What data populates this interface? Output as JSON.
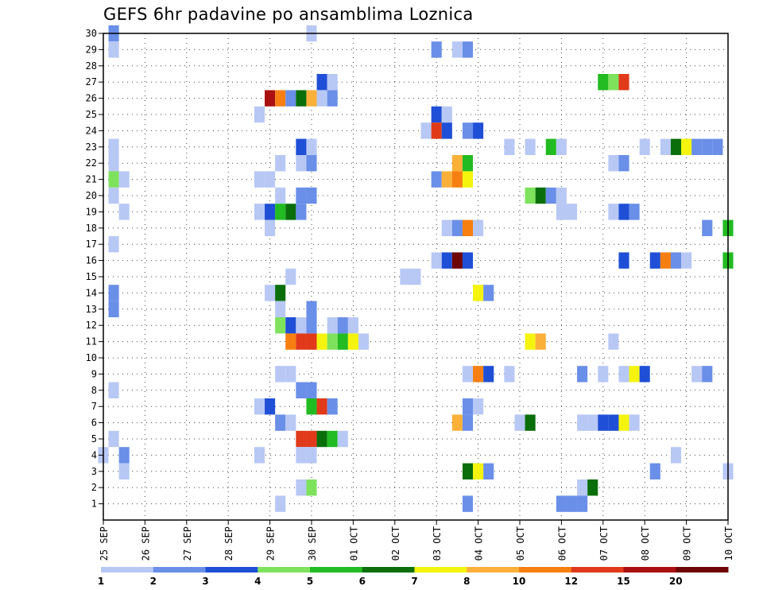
{
  "chart_data": {
    "type": "heatmap",
    "title": "GEFS 6hr padavine po ansamblima Loznica",
    "xlabel": "",
    "ylabel": "",
    "y_ticks": [
      "1",
      "2",
      "3",
      "4",
      "5",
      "6",
      "7",
      "8",
      "9",
      "10",
      "11",
      "12",
      "13",
      "14",
      "15",
      "16",
      "17",
      "18",
      "19",
      "20",
      "21",
      "22",
      "23",
      "24",
      "25",
      "26",
      "27",
      "28",
      "29",
      "30"
    ],
    "x_ticks": [
      "25 SEP",
      "26 SEP",
      "27 SEP",
      "28 SEP",
      "29 SEP",
      "30 SEP",
      "01 OCT",
      "02 OCT",
      "03 OCT",
      "04 OCT",
      "05 OCT",
      "06 OCT",
      "07 OCT",
      "08 OCT",
      "09 OCT",
      "10 OCT"
    ],
    "x_unit": "6-hour steps from 25 SEP 00Z",
    "x_range": [
      0,
      60
    ],
    "y_range": [
      0,
      30
    ],
    "grid": true,
    "colorbar": {
      "labels": [
        "1",
        "2",
        "3",
        "4",
        "5",
        "6",
        "7",
        "8",
        "10",
        "12",
        "15",
        "20"
      ],
      "colors": [
        "#b8c8f5",
        "#6a8fe8",
        "#1f4fd6",
        "#7ee25c",
        "#22bb22",
        "#0a6f0a",
        "#f4f40e",
        "#fbb03a",
        "#f77f12",
        "#e03a1a",
        "#ab1010",
        "#6e0606"
      ]
    },
    "cells": [
      {
        "y": 30,
        "t": 1,
        "c": 1
      },
      {
        "y": 30,
        "t": 20,
        "c": 0
      },
      {
        "y": 29,
        "t": 1,
        "c": 0
      },
      {
        "y": 29,
        "t": 32,
        "c": 1
      },
      {
        "y": 29,
        "t": 34,
        "c": 0
      },
      {
        "y": 29,
        "t": 35,
        "c": 1
      },
      {
        "y": 27,
        "t": 21,
        "c": 2
      },
      {
        "y": 27,
        "t": 22,
        "c": 0
      },
      {
        "y": 27,
        "t": 48,
        "c": 4
      },
      {
        "y": 27,
        "t": 49,
        "c": 3
      },
      {
        "y": 27,
        "t": 50,
        "c": 9
      },
      {
        "y": 26,
        "t": 16,
        "c": 10
      },
      {
        "y": 26,
        "t": 17,
        "c": 8
      },
      {
        "y": 26,
        "t": 18,
        "c": 1
      },
      {
        "y": 26,
        "t": 19,
        "c": 5
      },
      {
        "y": 26,
        "t": 20,
        "c": 7
      },
      {
        "y": 26,
        "t": 21,
        "c": 0
      },
      {
        "y": 26,
        "t": 22,
        "c": 1
      },
      {
        "y": 25,
        "t": 15,
        "c": 0
      },
      {
        "y": 25,
        "t": 32,
        "c": 2
      },
      {
        "y": 25,
        "t": 33,
        "c": 0
      },
      {
        "y": 24,
        "t": 31,
        "c": 0
      },
      {
        "y": 24,
        "t": 32,
        "c": 9
      },
      {
        "y": 24,
        "t": 33,
        "c": 2
      },
      {
        "y": 24,
        "t": 35,
        "c": 1
      },
      {
        "y": 24,
        "t": 36,
        "c": 2
      },
      {
        "y": 23,
        "t": 1,
        "c": 0
      },
      {
        "y": 23,
        "t": 19,
        "c": 2
      },
      {
        "y": 23,
        "t": 20,
        "c": 0
      },
      {
        "y": 23,
        "t": 39,
        "c": 0
      },
      {
        "y": 23,
        "t": 41,
        "c": 0
      },
      {
        "y": 23,
        "t": 43,
        "c": 4
      },
      {
        "y": 23,
        "t": 44,
        "c": 0
      },
      {
        "y": 23,
        "t": 52,
        "c": 0
      },
      {
        "y": 23,
        "t": 54,
        "c": 0
      },
      {
        "y": 23,
        "t": 55,
        "c": 5
      },
      {
        "y": 23,
        "t": 56,
        "c": 6
      },
      {
        "y": 23,
        "t": 57,
        "c": 1
      },
      {
        "y": 23,
        "t": 58,
        "c": 1
      },
      {
        "y": 23,
        "t": 59,
        "c": 1
      },
      {
        "y": 22,
        "t": 1,
        "c": 0
      },
      {
        "y": 22,
        "t": 17,
        "c": 0
      },
      {
        "y": 22,
        "t": 19,
        "c": 0
      },
      {
        "y": 22,
        "t": 20,
        "c": 1
      },
      {
        "y": 22,
        "t": 34,
        "c": 7
      },
      {
        "y": 22,
        "t": 35,
        "c": 4
      },
      {
        "y": 22,
        "t": 49,
        "c": 0
      },
      {
        "y": 22,
        "t": 50,
        "c": 1
      },
      {
        "y": 21,
        "t": 1,
        "c": 3
      },
      {
        "y": 21,
        "t": 2,
        "c": 0
      },
      {
        "y": 21,
        "t": 15,
        "c": 0
      },
      {
        "y": 21,
        "t": 16,
        "c": 0
      },
      {
        "y": 21,
        "t": 32,
        "c": 1
      },
      {
        "y": 21,
        "t": 33,
        "c": 7
      },
      {
        "y": 21,
        "t": 34,
        "c": 8
      },
      {
        "y": 21,
        "t": 35,
        "c": 6
      },
      {
        "y": 20,
        "t": 1,
        "c": 0
      },
      {
        "y": 20,
        "t": 17,
        "c": 0
      },
      {
        "y": 20,
        "t": 19,
        "c": 1
      },
      {
        "y": 20,
        "t": 20,
        "c": 1
      },
      {
        "y": 20,
        "t": 41,
        "c": 3
      },
      {
        "y": 20,
        "t": 42,
        "c": 5
      },
      {
        "y": 20,
        "t": 43,
        "c": 1
      },
      {
        "y": 20,
        "t": 44,
        "c": 0
      },
      {
        "y": 19,
        "t": 2,
        "c": 0
      },
      {
        "y": 19,
        "t": 15,
        "c": 0
      },
      {
        "y": 19,
        "t": 16,
        "c": 2
      },
      {
        "y": 19,
        "t": 17,
        "c": 4
      },
      {
        "y": 19,
        "t": 18,
        "c": 5
      },
      {
        "y": 19,
        "t": 19,
        "c": 1
      },
      {
        "y": 19,
        "t": 44,
        "c": 0
      },
      {
        "y": 19,
        "t": 45,
        "c": 0
      },
      {
        "y": 19,
        "t": 49,
        "c": 0
      },
      {
        "y": 19,
        "t": 50,
        "c": 2
      },
      {
        "y": 19,
        "t": 51,
        "c": 1
      },
      {
        "y": 18,
        "t": 16,
        "c": 0
      },
      {
        "y": 18,
        "t": 33,
        "c": 0
      },
      {
        "y": 18,
        "t": 34,
        "c": 1
      },
      {
        "y": 18,
        "t": 35,
        "c": 8
      },
      {
        "y": 18,
        "t": 36,
        "c": 0
      },
      {
        "y": 18,
        "t": 58,
        "c": 1
      },
      {
        "y": 18,
        "t": 60,
        "c": 4
      },
      {
        "y": 17,
        "t": 1,
        "c": 0
      },
      {
        "y": 16,
        "t": 32,
        "c": 0
      },
      {
        "y": 16,
        "t": 33,
        "c": 2
      },
      {
        "y": 16,
        "t": 34,
        "c": 11
      },
      {
        "y": 16,
        "t": 35,
        "c": 2
      },
      {
        "y": 16,
        "t": 50,
        "c": 2
      },
      {
        "y": 16,
        "t": 53,
        "c": 2
      },
      {
        "y": 16,
        "t": 54,
        "c": 8
      },
      {
        "y": 16,
        "t": 55,
        "c": 1
      },
      {
        "y": 16,
        "t": 56,
        "c": 0
      },
      {
        "y": 16,
        "t": 60,
        "c": 4
      },
      {
        "y": 15,
        "t": 18,
        "c": 0
      },
      {
        "y": 15,
        "t": 29,
        "c": 0
      },
      {
        "y": 15,
        "t": 30,
        "c": 0
      },
      {
        "y": 14,
        "t": 1,
        "c": 1
      },
      {
        "y": 14,
        "t": 16,
        "c": 0
      },
      {
        "y": 14,
        "t": 17,
        "c": 5
      },
      {
        "y": 14,
        "t": 36,
        "c": 6
      },
      {
        "y": 14,
        "t": 37,
        "c": 1
      },
      {
        "y": 13,
        "t": 1,
        "c": 1
      },
      {
        "y": 13,
        "t": 17,
        "c": 0
      },
      {
        "y": 13,
        "t": 20,
        "c": 1
      },
      {
        "y": 12,
        "t": 17,
        "c": 3
      },
      {
        "y": 12,
        "t": 18,
        "c": 2
      },
      {
        "y": 12,
        "t": 19,
        "c": 0
      },
      {
        "y": 12,
        "t": 20,
        "c": 1
      },
      {
        "y": 12,
        "t": 22,
        "c": 0
      },
      {
        "y": 12,
        "t": 23,
        "c": 1
      },
      {
        "y": 12,
        "t": 24,
        "c": 0
      },
      {
        "y": 11,
        "t": 18,
        "c": 8
      },
      {
        "y": 11,
        "t": 19,
        "c": 9
      },
      {
        "y": 11,
        "t": 20,
        "c": 9
      },
      {
        "y": 11,
        "t": 21,
        "c": 6
      },
      {
        "y": 11,
        "t": 22,
        "c": 3
      },
      {
        "y": 11,
        "t": 23,
        "c": 4
      },
      {
        "y": 11,
        "t": 24,
        "c": 6
      },
      {
        "y": 11,
        "t": 25,
        "c": 0
      },
      {
        "y": 11,
        "t": 41,
        "c": 6
      },
      {
        "y": 11,
        "t": 42,
        "c": 7
      },
      {
        "y": 11,
        "t": 49,
        "c": 0
      },
      {
        "y": 9,
        "t": 17,
        "c": 0
      },
      {
        "y": 9,
        "t": 18,
        "c": 0
      },
      {
        "y": 9,
        "t": 35,
        "c": 0
      },
      {
        "y": 9,
        "t": 36,
        "c": 8
      },
      {
        "y": 9,
        "t": 37,
        "c": 2
      },
      {
        "y": 9,
        "t": 39,
        "c": 0
      },
      {
        "y": 9,
        "t": 46,
        "c": 1
      },
      {
        "y": 9,
        "t": 48,
        "c": 0
      },
      {
        "y": 9,
        "t": 50,
        "c": 0
      },
      {
        "y": 9,
        "t": 51,
        "c": 6
      },
      {
        "y": 9,
        "t": 52,
        "c": 2
      },
      {
        "y": 9,
        "t": 57,
        "c": 0
      },
      {
        "y": 9,
        "t": 58,
        "c": 1
      },
      {
        "y": 8,
        "t": 1,
        "c": 0
      },
      {
        "y": 8,
        "t": 19,
        "c": 1
      },
      {
        "y": 8,
        "t": 20,
        "c": 1
      },
      {
        "y": 7,
        "t": 15,
        "c": 0
      },
      {
        "y": 7,
        "t": 16,
        "c": 2
      },
      {
        "y": 7,
        "t": 20,
        "c": 4
      },
      {
        "y": 7,
        "t": 21,
        "c": 9
      },
      {
        "y": 7,
        "t": 22,
        "c": 1
      },
      {
        "y": 7,
        "t": 35,
        "c": 1
      },
      {
        "y": 7,
        "t": 36,
        "c": 0
      },
      {
        "y": 6,
        "t": 17,
        "c": 1
      },
      {
        "y": 6,
        "t": 18,
        "c": 0
      },
      {
        "y": 6,
        "t": 34,
        "c": 7
      },
      {
        "y": 6,
        "t": 35,
        "c": 1
      },
      {
        "y": 6,
        "t": 40,
        "c": 0
      },
      {
        "y": 6,
        "t": 41,
        "c": 5
      },
      {
        "y": 6,
        "t": 46,
        "c": 0
      },
      {
        "y": 6,
        "t": 47,
        "c": 0
      },
      {
        "y": 6,
        "t": 48,
        "c": 2
      },
      {
        "y": 6,
        "t": 49,
        "c": 2
      },
      {
        "y": 6,
        "t": 50,
        "c": 6
      },
      {
        "y": 6,
        "t": 51,
        "c": 0
      },
      {
        "y": 5,
        "t": 1,
        "c": 0
      },
      {
        "y": 5,
        "t": 19,
        "c": 9
      },
      {
        "y": 5,
        "t": 20,
        "c": 9
      },
      {
        "y": 5,
        "t": 21,
        "c": 5
      },
      {
        "y": 5,
        "t": 22,
        "c": 4
      },
      {
        "y": 5,
        "t": 23,
        "c": 0
      },
      {
        "y": 4,
        "t": 0,
        "c": 0
      },
      {
        "y": 4,
        "t": 2,
        "c": 1
      },
      {
        "y": 4,
        "t": 15,
        "c": 0
      },
      {
        "y": 4,
        "t": 19,
        "c": 0
      },
      {
        "y": 4,
        "t": 20,
        "c": 0
      },
      {
        "y": 4,
        "t": 55,
        "c": 0
      },
      {
        "y": 3,
        "t": 2,
        "c": 0
      },
      {
        "y": 3,
        "t": 35,
        "c": 5
      },
      {
        "y": 3,
        "t": 36,
        "c": 6
      },
      {
        "y": 3,
        "t": 37,
        "c": 1
      },
      {
        "y": 3,
        "t": 53,
        "c": 1
      },
      {
        "y": 3,
        "t": 60,
        "c": 0
      },
      {
        "y": 2,
        "t": 19,
        "c": 0
      },
      {
        "y": 2,
        "t": 20,
        "c": 3
      },
      {
        "y": 2,
        "t": 46,
        "c": 0
      },
      {
        "y": 2,
        "t": 47,
        "c": 5
      },
      {
        "y": 1,
        "t": 17,
        "c": 0
      },
      {
        "y": 1,
        "t": 35,
        "c": 1
      },
      {
        "y": 1,
        "t": 44,
        "c": 1
      },
      {
        "y": 1,
        "t": 45,
        "c": 1
      },
      {
        "y": 1,
        "t": 46,
        "c": 1
      }
    ]
  }
}
